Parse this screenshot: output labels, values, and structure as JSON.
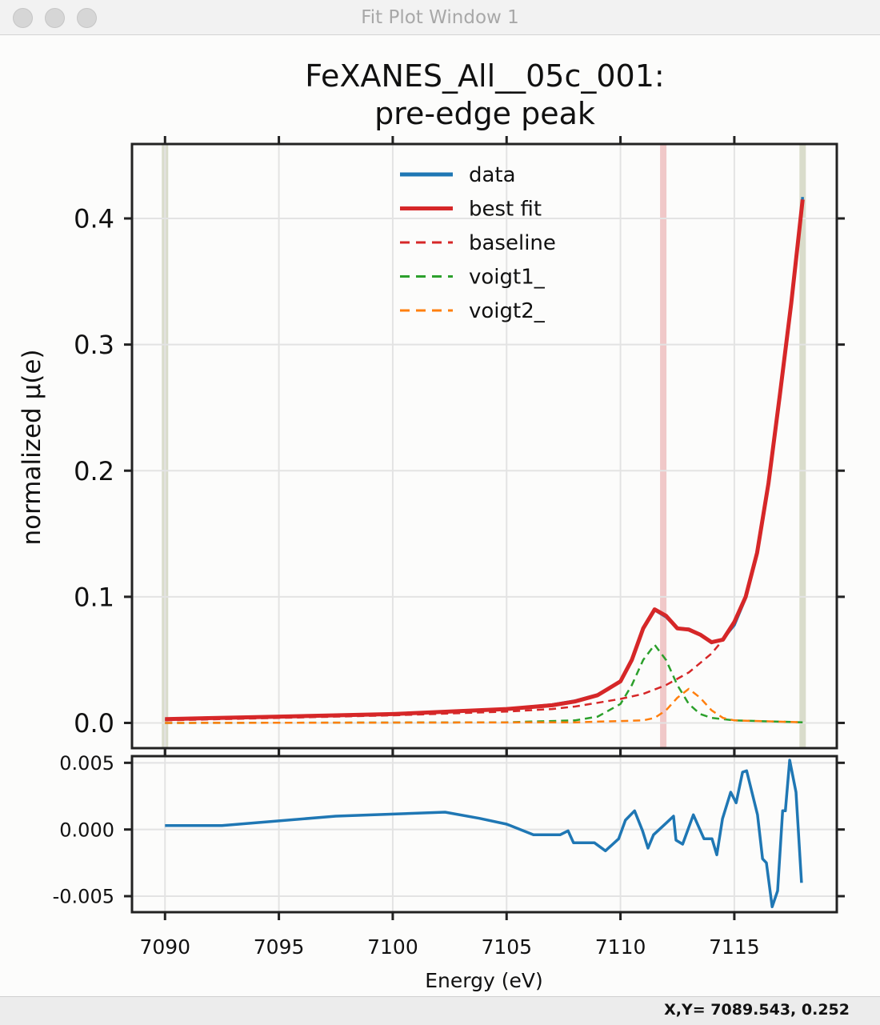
{
  "window": {
    "title": "Fit Plot Window 1",
    "buttons": [
      "close",
      "minimize",
      "zoom"
    ]
  },
  "status": {
    "coords": "X,Y= 7089.543, 0.252"
  },
  "chart_data": [
    {
      "type": "line",
      "title": "FeXANES_All__05c_001:",
      "subtitle": "pre-edge peak",
      "xlabel": "Energy (eV)",
      "ylabel": "normalized μ(e)",
      "xlim": [
        7088.55,
        7119.5
      ],
      "ylim": [
        -0.02,
        0.459
      ],
      "xticks": [
        7090,
        7095,
        7100,
        7105,
        7110,
        7115
      ],
      "yticks": [
        0.0,
        0.1,
        0.2,
        0.3,
        0.4
      ],
      "ytick_labels": [
        "0.0",
        "0.1",
        "0.2",
        "0.3",
        "0.4"
      ],
      "grid": true,
      "legend": "top-center",
      "vertical_bands": [
        {
          "x": 7090,
          "color": "#d9dccb"
        },
        {
          "x": 7118,
          "color": "#d9dccb"
        },
        {
          "x": 7111.88,
          "color": "#f0c8c8"
        }
      ],
      "series": [
        {
          "name": "data",
          "color": "#1f77b4",
          "style": "solid",
          "x": [
            7090,
            7095,
            7100,
            7105,
            7107,
            7108,
            7109,
            7110,
            7110.5,
            7111,
            7111.5,
            7112,
            7112.5,
            7113,
            7113.5,
            7114,
            7114.5,
            7115,
            7115.5,
            7116,
            7116.5,
            7117,
            7117.5,
            7118
          ],
          "y": [
            0.003,
            0.005,
            0.007,
            0.011,
            0.0145,
            0.0175,
            0.0225,
            0.033,
            0.05,
            0.075,
            0.0895,
            0.084,
            0.075,
            0.0745,
            0.07,
            0.0635,
            0.0665,
            0.0775,
            0.099,
            0.136,
            0.19,
            0.258,
            0.333,
            0.417
          ]
        },
        {
          "name": "best fit",
          "color": "#d62728",
          "style": "solid",
          "x": [
            7090,
            7095,
            7100,
            7105,
            7107,
            7108,
            7109,
            7110,
            7110.5,
            7111,
            7111.5,
            7112,
            7112.5,
            7113,
            7113.5,
            7114,
            7114.5,
            7115,
            7115.5,
            7116,
            7116.5,
            7117,
            7117.5,
            7118
          ],
          "y": [
            0.003,
            0.005,
            0.007,
            0.011,
            0.014,
            0.017,
            0.022,
            0.033,
            0.05,
            0.075,
            0.09,
            0.085,
            0.075,
            0.074,
            0.07,
            0.064,
            0.066,
            0.08,
            0.1,
            0.135,
            0.19,
            0.26,
            0.333,
            0.415
          ]
        },
        {
          "name": "baseline",
          "color": "#d62728",
          "style": "dashed",
          "x": [
            7090,
            7095,
            7100,
            7105,
            7107,
            7108,
            7109,
            7110,
            7111,
            7112,
            7113,
            7114,
            7114.6
          ],
          "y": [
            0.002,
            0.004,
            0.006,
            0.009,
            0.011,
            0.013,
            0.016,
            0.019,
            0.023,
            0.03,
            0.04,
            0.055,
            0.068
          ]
        },
        {
          "name": "voigt1_",
          "color": "#2ca02c",
          "style": "dashed",
          "x": [
            7090,
            7105,
            7108,
            7109,
            7110,
            7110.5,
            7111,
            7111.5,
            7112,
            7112.5,
            7113,
            7113.5,
            7114,
            7115,
            7118
          ],
          "y": [
            0,
            0.0005,
            0.002,
            0.005,
            0.015,
            0.03,
            0.05,
            0.062,
            0.05,
            0.03,
            0.015,
            0.007,
            0.004,
            0.002,
            0.0005
          ]
        },
        {
          "name": "voigt2_",
          "color": "#ff7f0e",
          "style": "dashed",
          "x": [
            7090,
            7108,
            7111,
            7111.5,
            7112,
            7112.5,
            7113,
            7113.5,
            7114,
            7114.5,
            7115,
            7118
          ],
          "y": [
            0,
            0.0005,
            0.002,
            0.004,
            0.01,
            0.02,
            0.027,
            0.02,
            0.01,
            0.004,
            0.002,
            0.0005
          ]
        }
      ]
    },
    {
      "type": "line",
      "xlabel": "Energy (eV)",
      "xlim": [
        7088.55,
        7119.5
      ],
      "ylim": [
        -0.0062,
        0.0055
      ],
      "xticks": [
        7090,
        7095,
        7100,
        7105,
        7110,
        7115
      ],
      "yticks": [
        0.005,
        0.0,
        -0.005
      ],
      "ytick_labels": [
        "0.005",
        "0.000",
        "-0.005"
      ],
      "grid": true,
      "series": [
        {
          "color": "#1f77b4",
          "style": "solid",
          "x": [
            7090,
            7092.5,
            7097.5,
            7102.3,
            7103.8,
            7105,
            7106.18,
            7107.35,
            7107.7,
            7107.94,
            7108.86,
            7109.34,
            7109.92,
            7110.22,
            7110.62,
            7110.97,
            7111.21,
            7111.45,
            7112.02,
            7112.33,
            7112.44,
            7112.73,
            7113.2,
            7113.67,
            7114.02,
            7114.23,
            7114.48,
            7114.84,
            7115.08,
            7115.36,
            7115.54,
            7116.02,
            7116.24,
            7116.41,
            7116.66,
            7116.9,
            7117.12,
            7117.24,
            7117.43,
            7117.71,
            7117.95
          ],
          "y": [
            0.0003,
            0.0003,
            0.001,
            0.0013,
            0.00084,
            0.0004,
            -0.0004,
            -0.0004,
            -0.0001,
            -0.001,
            -0.001,
            -0.0016,
            -0.0007,
            0.0007,
            0.0014,
            -0.0001,
            -0.0014,
            -0.0004,
            0.0005,
            0.001,
            -0.0008,
            -0.0011,
            0.0011,
            -0.0007,
            -0.0007,
            -0.0019,
            0.0008,
            0.0028,
            0.002,
            0.0043,
            0.0044,
            0.0011,
            -0.0022,
            -0.0025,
            -0.0058,
            -0.0046,
            0.0014,
            0.0014,
            0.0052,
            0.0028,
            -0.004
          ]
        }
      ]
    }
  ]
}
